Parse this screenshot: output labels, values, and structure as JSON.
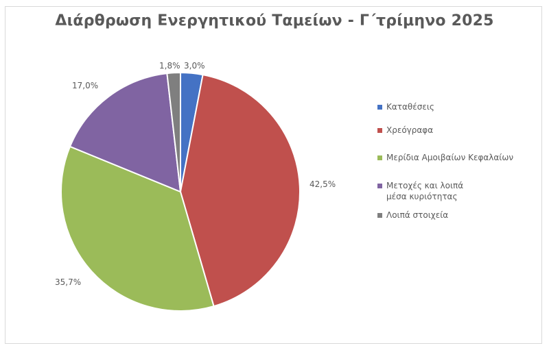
{
  "chart_data": {
    "type": "pie",
    "title": "Διάρθρωση Ενεργητικού Ταμείων - Γ΄τρίμηνο 2025",
    "categories": [
      "Καταθέσεις",
      "Χρεόγραφα",
      "Μερίδια Αμοιβαίων Κεφαλαίων",
      "Μετοχές και λοιπά μέσα κυριότητας",
      "Λοιπά στοιχεία"
    ],
    "values": [
      3.0,
      42.5,
      35.7,
      17.0,
      1.8
    ],
    "value_labels": [
      "3,0%",
      "42,5%",
      "35,7%",
      "17,0%",
      "1,8%"
    ],
    "colors": [
      "#4472c4",
      "#c0504d",
      "#9bbb59",
      "#8064a2",
      "#7f7f7f"
    ],
    "unit": "%",
    "start_angle": "12 o'clock, clockwise",
    "legend_position": "right"
  },
  "legend": {
    "items": [
      {
        "label": "Καταθέσεις",
        "color": "#4472c4"
      },
      {
        "label": "Χρεόγραφα",
        "color": "#c0504d"
      },
      {
        "label": "Μερίδια Αμοιβαίων Κεφαλαίων",
        "color": "#9bbb59"
      },
      {
        "label": "Μετοχές και λοιπά μέσα κυριότητας",
        "color": "#8064a2"
      },
      {
        "label": "Λοιπά στοιχεία",
        "color": "#7f7f7f"
      }
    ]
  },
  "labels": {
    "deposits": "3,0%",
    "securities": "42,5%",
    "mutual_funds": "35,7%",
    "equities": "17,0%",
    "other": "1,8%"
  }
}
